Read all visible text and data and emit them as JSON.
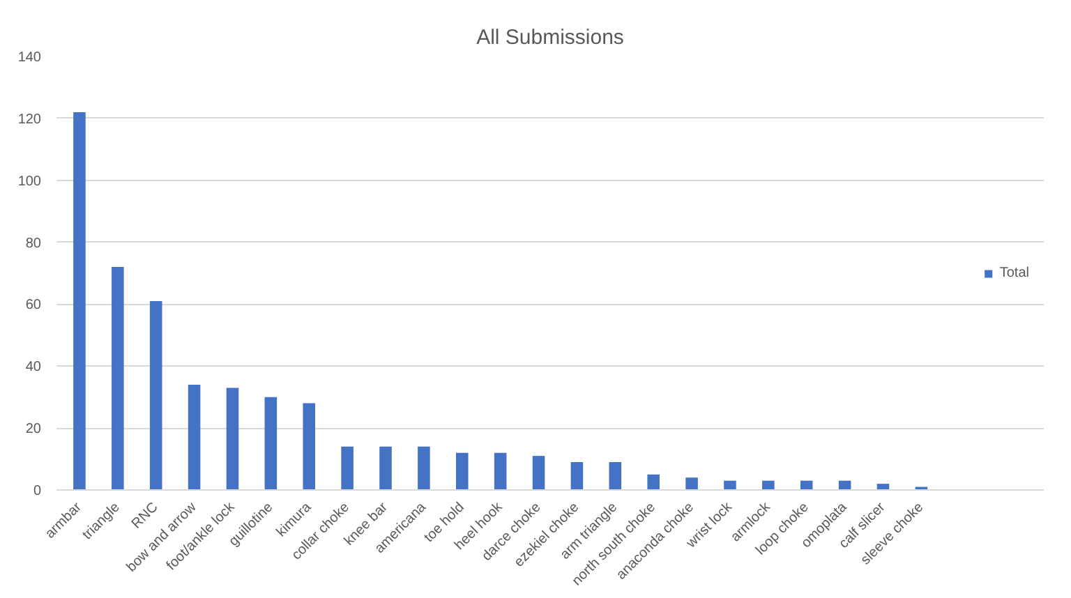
{
  "chart_data": {
    "type": "bar",
    "title": "All Submissions",
    "categories": [
      "armbar",
      "triangle",
      "RNC",
      "bow and arrow",
      "foot/ankle lock",
      "guillotine",
      "kimura",
      "collar choke",
      "knee bar",
      "americana",
      "toe hold",
      "heel hook",
      "darce choke",
      "ezekiel choke",
      "arm triangle",
      "north south choke",
      "anaconda choke",
      "wrist lock",
      "armlock",
      "loop choke",
      "omoplata",
      "calf slicer",
      "sleeve choke"
    ],
    "series": [
      {
        "name": "Total",
        "color": "#4472c4",
        "values": [
          122,
          72,
          61,
          34,
          33,
          30,
          28,
          14,
          14,
          14,
          12,
          12,
          11,
          9,
          9,
          5,
          4,
          3,
          3,
          3,
          3,
          2,
          1
        ]
      }
    ],
    "ylim": [
      0,
      140
    ],
    "yticks": [
      0,
      20,
      40,
      60,
      80,
      100,
      120,
      140
    ],
    "grid": "y",
    "legend": "right"
  }
}
